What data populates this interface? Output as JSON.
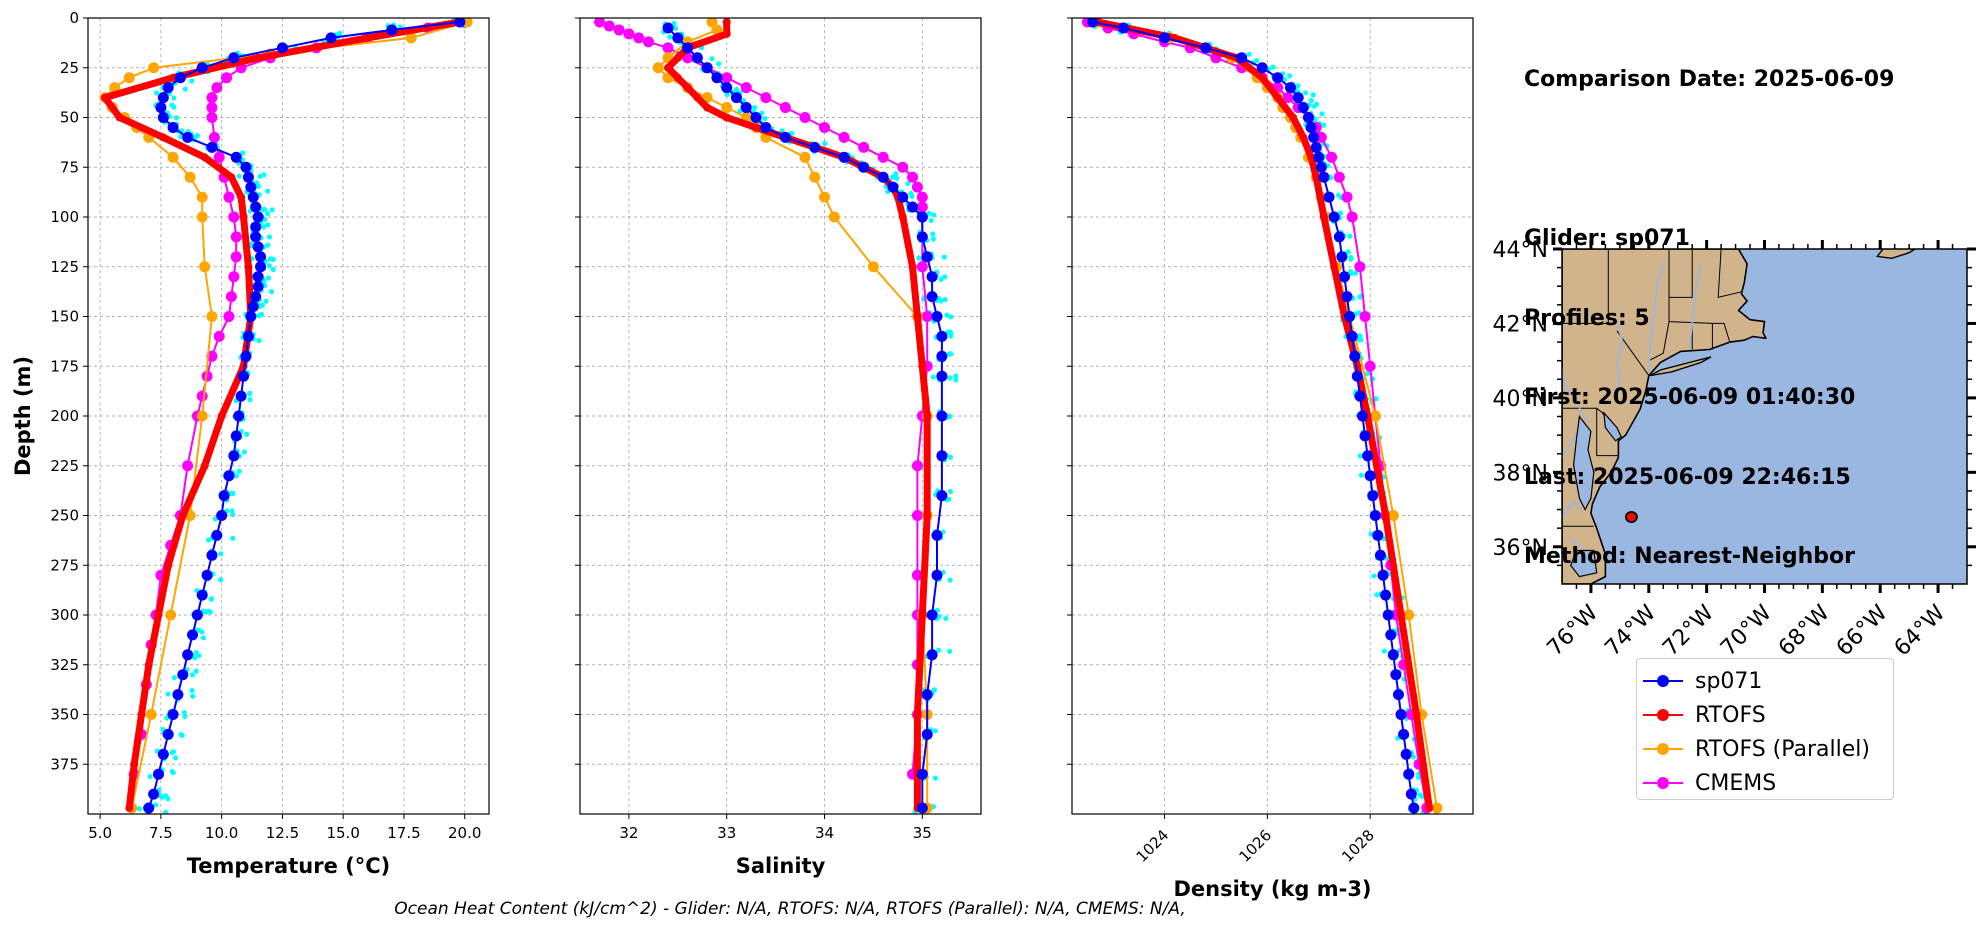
{
  "info": {
    "comparison": "Comparison Date: 2025-06-09",
    "glider": "Glider: sp071",
    "profiles": "Profiles: 5",
    "first": "First: 2025-06-09 01:40:30",
    "last": "Last: 2025-06-09 22:46:15",
    "method": "Method: Nearest-Neighbor"
  },
  "ohc_text": "Ocean Heat Content (kJ/cm^2) - Glider: N/A,  RTOFS: N/A,  RTOFS (Parallel): N/A,  CMEMS: N/A,",
  "colors": {
    "sp071": "#0000ff",
    "rtofs": "#ff0000",
    "parallel": "#ffa500",
    "cmems": "#ff00ff",
    "raw": "#00ffff",
    "land": "#d2b48c",
    "ocean": "#9ab7e2"
  },
  "legend": [
    {
      "label": "sp071",
      "color": "#0000ff"
    },
    {
      "label": "RTOFS",
      "color": "#ff0000"
    },
    {
      "label": "RTOFS (Parallel)",
      "color": "#ffa500"
    },
    {
      "label": "CMEMS",
      "color": "#ff00ff"
    }
  ],
  "map": {
    "lon_range": [
      -77.0,
      -63.0
    ],
    "lat_range": [
      35.0,
      44.0
    ],
    "lon_ticks": [
      "76°W",
      "74°W",
      "72°W",
      "70°W",
      "68°W",
      "66°W",
      "64°W"
    ],
    "lat_ticks": [
      "36°N",
      "38°N",
      "40°N",
      "42°N",
      "44°N"
    ],
    "glider_position": {
      "lon": -74.6,
      "lat": 36.8
    }
  },
  "chart_data": [
    {
      "type": "line",
      "name": "temperature",
      "xlabel": "Temperature (°C)",
      "ylabel": "Depth (m)",
      "xlim": [
        4.5,
        21.0
      ],
      "ylim": [
        400,
        0
      ],
      "grid": true,
      "x_ticks": [
        5.0,
        7.5,
        10.0,
        12.5,
        15.0,
        17.5,
        20.0
      ],
      "x_tick_labels": [
        "5.0",
        "7.5",
        "10.0",
        "12.5",
        "15.0",
        "17.5",
        "20.0"
      ],
      "y_ticks": [
        0,
        25,
        50,
        75,
        100,
        125,
        150,
        175,
        200,
        225,
        250,
        275,
        300,
        325,
        350,
        375
      ],
      "series": [
        {
          "name": "sp071",
          "color": "#0000ff",
          "depth": [
            2,
            6,
            10,
            15,
            20,
            25,
            30,
            35,
            40,
            45,
            50,
            55,
            60,
            65,
            70,
            75,
            80,
            85,
            90,
            95,
            100,
            105,
            110,
            115,
            120,
            125,
            130,
            135,
            140,
            145,
            150,
            160,
            170,
            180,
            190,
            200,
            210,
            220,
            230,
            240,
            250,
            260,
            270,
            280,
            290,
            300,
            310,
            320,
            330,
            340,
            350,
            360,
            370,
            380,
            390,
            397
          ],
          "values": [
            19.8,
            17.0,
            14.5,
            12.5,
            10.5,
            9.2,
            8.3,
            7.8,
            7.6,
            7.5,
            7.6,
            8.0,
            8.6,
            9.6,
            10.6,
            11.0,
            11.1,
            11.2,
            11.3,
            11.4,
            11.5,
            11.4,
            11.4,
            11.5,
            11.6,
            11.6,
            11.5,
            11.5,
            11.4,
            11.3,
            11.2,
            11.1,
            11.0,
            10.9,
            10.8,
            10.7,
            10.6,
            10.5,
            10.3,
            10.1,
            10.0,
            9.8,
            9.6,
            9.4,
            9.2,
            9.0,
            8.8,
            8.6,
            8.4,
            8.2,
            8.0,
            7.8,
            7.6,
            7.4,
            7.2,
            7.0
          ]
        },
        {
          "name": "RTOFS",
          "color": "#ff0000",
          "depth": [
            2,
            10,
            20,
            30,
            40,
            50,
            60,
            70,
            80,
            90,
            100,
            125,
            150,
            175,
            200,
            225,
            250,
            275,
            300,
            325,
            350,
            375,
            397
          ],
          "values": [
            19.8,
            16.0,
            11.5,
            8.0,
            5.2,
            5.8,
            7.6,
            9.3,
            10.4,
            10.8,
            10.9,
            11.1,
            11.2,
            10.9,
            10.0,
            9.3,
            8.4,
            7.8,
            7.4,
            7.0,
            6.7,
            6.4,
            6.2
          ]
        },
        {
          "name": "RTOFS (Parallel)",
          "color": "#ffa500",
          "depth": [
            2,
            10,
            18,
            25,
            30,
            35,
            40,
            45,
            50,
            55,
            60,
            70,
            80,
            90,
            100,
            125,
            150,
            200,
            250,
            300,
            350,
            397
          ],
          "values": [
            20.1,
            17.8,
            12.0,
            7.2,
            6.2,
            5.6,
            5.2,
            5.5,
            6.0,
            6.5,
            7.0,
            8.0,
            8.7,
            9.2,
            9.2,
            9.3,
            9.6,
            9.2,
            8.7,
            7.9,
            7.1,
            6.3
          ]
        },
        {
          "name": "CMEMS",
          "color": "#ff00ff",
          "depth": [
            2,
            5,
            10,
            15,
            20,
            25,
            30,
            35,
            40,
            45,
            50,
            60,
            70,
            80,
            90,
            100,
            110,
            120,
            130,
            140,
            150,
            160,
            170,
            180,
            190,
            200,
            225,
            250,
            265,
            280,
            300,
            315,
            335,
            360,
            380
          ],
          "values": [
            20.0,
            18.5,
            16.0,
            13.9,
            12.0,
            10.8,
            10.2,
            9.8,
            9.6,
            9.6,
            9.6,
            9.7,
            9.9,
            10.1,
            10.3,
            10.5,
            10.6,
            10.6,
            10.5,
            10.4,
            10.3,
            9.9,
            9.6,
            9.4,
            9.2,
            9.0,
            8.6,
            8.3,
            7.9,
            7.5,
            7.3,
            7.1,
            6.9,
            6.7,
            6.4
          ]
        }
      ]
    },
    {
      "type": "line",
      "name": "salinity",
      "xlabel": "Salinity",
      "ylabel": "",
      "xlim": [
        31.5,
        35.6
      ],
      "ylim": [
        400,
        0
      ],
      "grid": true,
      "x_ticks": [
        32,
        33,
        34,
        35
      ],
      "x_tick_labels": [
        "32",
        "33",
        "34",
        "35"
      ],
      "series": [
        {
          "name": "sp071",
          "color": "#0000ff",
          "depth": [
            5,
            10,
            15,
            20,
            25,
            30,
            35,
            40,
            45,
            50,
            55,
            60,
            65,
            70,
            75,
            80,
            85,
            90,
            95,
            100,
            110,
            120,
            130,
            140,
            150,
            160,
            170,
            180,
            200,
            220,
            240,
            260,
            280,
            300,
            320,
            340,
            360,
            380,
            397
          ],
          "values": [
            32.4,
            32.5,
            32.6,
            32.7,
            32.8,
            32.9,
            33.0,
            33.1,
            33.2,
            33.3,
            33.4,
            33.6,
            33.9,
            34.2,
            34.4,
            34.6,
            34.7,
            34.8,
            34.9,
            35.0,
            35.0,
            35.05,
            35.1,
            35.1,
            35.15,
            35.2,
            35.2,
            35.2,
            35.2,
            35.2,
            35.2,
            35.15,
            35.15,
            35.1,
            35.1,
            35.05,
            35.05,
            35.0,
            35.0
          ]
        },
        {
          "name": "RTOFS",
          "color": "#ff0000",
          "depth": [
            2,
            8,
            15,
            20,
            25,
            30,
            35,
            40,
            45,
            50,
            55,
            60,
            65,
            70,
            75,
            80,
            85,
            90,
            100,
            125,
            150,
            175,
            200,
            250,
            300,
            350,
            397
          ],
          "values": [
            33.0,
            33.0,
            32.6,
            32.5,
            32.4,
            32.5,
            32.6,
            32.7,
            32.8,
            33.0,
            33.3,
            33.6,
            33.9,
            34.2,
            34.4,
            34.6,
            34.7,
            34.75,
            34.8,
            34.9,
            34.95,
            35.0,
            35.05,
            35.05,
            35.0,
            34.95,
            34.95
          ]
        },
        {
          "name": "RTOFS (Parallel)",
          "color": "#ffa500",
          "depth": [
            2,
            6,
            12,
            20,
            25,
            30,
            35,
            40,
            45,
            50,
            55,
            60,
            70,
            80,
            90,
            100,
            125,
            150,
            200,
            250,
            300,
            350,
            397
          ],
          "values": [
            32.85,
            32.9,
            32.6,
            32.4,
            32.3,
            32.4,
            32.6,
            32.8,
            33.0,
            33.2,
            33.3,
            33.4,
            33.8,
            33.9,
            34.0,
            34.1,
            34.5,
            34.95,
            35.05,
            35.05,
            35.0,
            35.05,
            35.05
          ]
        },
        {
          "name": "CMEMS",
          "color": "#ff00ff",
          "depth": [
            2,
            4,
            6,
            8,
            10,
            12,
            15,
            20,
            25,
            30,
            35,
            40,
            45,
            50,
            55,
            60,
            65,
            70,
            75,
            80,
            85,
            90,
            95,
            100,
            125,
            150,
            175,
            200,
            225,
            250,
            280,
            300,
            325,
            350,
            380
          ],
          "values": [
            31.7,
            31.8,
            31.9,
            32.0,
            32.1,
            32.2,
            32.4,
            32.6,
            32.8,
            33.0,
            33.2,
            33.4,
            33.6,
            33.8,
            34.0,
            34.2,
            34.4,
            34.6,
            34.8,
            34.9,
            34.95,
            35.0,
            35.0,
            35.0,
            35.0,
            35.05,
            35.05,
            35.0,
            34.95,
            34.95,
            34.95,
            34.95,
            34.95,
            34.95,
            34.9
          ]
        }
      ]
    },
    {
      "type": "line",
      "name": "density",
      "xlabel": "Density (kg m-3)",
      "ylabel": "",
      "xlim": [
        1022.2,
        1030.0
      ],
      "ylim": [
        400,
        0
      ],
      "grid": true,
      "x_ticks": [
        1024,
        1026,
        1028
      ],
      "x_tick_labels": [
        "1024",
        "1026",
        "1028"
      ],
      "series": [
        {
          "name": "sp071",
          "color": "#0000ff",
          "depth": [
            2,
            5,
            10,
            15,
            20,
            25,
            30,
            35,
            40,
            45,
            50,
            55,
            60,
            65,
            70,
            75,
            80,
            90,
            100,
            110,
            120,
            130,
            140,
            150,
            160,
            170,
            180,
            190,
            200,
            210,
            220,
            230,
            240,
            250,
            260,
            270,
            280,
            290,
            300,
            310,
            320,
            330,
            340,
            350,
            360,
            370,
            380,
            390,
            397
          ],
          "values": [
            1022.6,
            1023.2,
            1024.0,
            1024.8,
            1025.5,
            1025.9,
            1026.2,
            1026.45,
            1026.6,
            1026.7,
            1026.8,
            1026.85,
            1026.9,
            1026.95,
            1027.0,
            1027.05,
            1027.1,
            1027.2,
            1027.3,
            1027.4,
            1027.45,
            1027.5,
            1027.55,
            1027.6,
            1027.65,
            1027.7,
            1027.75,
            1027.8,
            1027.85,
            1027.9,
            1027.95,
            1028.0,
            1028.05,
            1028.1,
            1028.15,
            1028.2,
            1028.25,
            1028.3,
            1028.35,
            1028.4,
            1028.45,
            1028.5,
            1028.55,
            1028.6,
            1028.65,
            1028.7,
            1028.75,
            1028.8,
            1028.85
          ]
        },
        {
          "name": "RTOFS",
          "color": "#ff0000",
          "depth": [
            2,
            10,
            20,
            30,
            40,
            50,
            60,
            70,
            80,
            100,
            125,
            150,
            175,
            200,
            250,
            300,
            350,
            397
          ],
          "values": [
            1022.7,
            1024.2,
            1025.4,
            1025.9,
            1026.2,
            1026.5,
            1026.7,
            1026.85,
            1026.95,
            1027.1,
            1027.3,
            1027.5,
            1027.75,
            1027.95,
            1028.3,
            1028.6,
            1028.9,
            1029.15
          ]
        },
        {
          "name": "RTOFS (Parallel)",
          "color": "#ffa500",
          "depth": [
            2,
            10,
            20,
            30,
            35,
            40,
            45,
            50,
            55,
            60,
            70,
            80,
            90,
            100,
            125,
            150,
            200,
            250,
            300,
            350,
            397
          ],
          "values": [
            1022.7,
            1024.1,
            1025.3,
            1025.8,
            1026.0,
            1026.2,
            1026.3,
            1026.45,
            1026.55,
            1026.65,
            1026.8,
            1026.95,
            1027.05,
            1027.15,
            1027.35,
            1027.6,
            1028.1,
            1028.45,
            1028.75,
            1029.0,
            1029.3
          ]
        },
        {
          "name": "CMEMS",
          "color": "#ff00ff",
          "depth": [
            2,
            5,
            8,
            12,
            15,
            20,
            25,
            30,
            35,
            40,
            45,
            50,
            55,
            60,
            70,
            80,
            90,
            100,
            125,
            150,
            175,
            200,
            225,
            250,
            275,
            300,
            325,
            350,
            375,
            397
          ],
          "values": [
            1022.5,
            1022.9,
            1023.4,
            1024.0,
            1024.5,
            1025.0,
            1025.5,
            1025.9,
            1026.2,
            1026.4,
            1026.6,
            1026.8,
            1026.95,
            1027.05,
            1027.25,
            1027.4,
            1027.55,
            1027.65,
            1027.8,
            1027.9,
            1028.0,
            1028.1,
            1028.2,
            1028.3,
            1028.4,
            1028.5,
            1028.65,
            1028.8,
            1028.95,
            1029.1
          ]
        }
      ]
    }
  ]
}
